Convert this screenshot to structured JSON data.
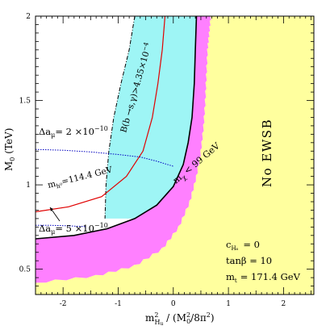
{
  "chart_data": {
    "type": "area",
    "xlabel": "m²_{H_u} / (M₀²/8π²)",
    "ylabel": "M₀ (TeV)",
    "xlim": [
      -2.5,
      2.55
    ],
    "ylim": [
      0.35,
      2.0
    ],
    "x_ticks": [
      -2,
      -1,
      0,
      1,
      2
    ],
    "y_ticks": [
      0.5,
      1,
      1.5,
      2
    ],
    "grid": false,
    "colors": {
      "no_ewsb": "#ffff9e",
      "chargino": "#ff80ff",
      "bsg": "#9ef5f5",
      "higgs_line": "#e00000",
      "g2_line": "#0000c0"
    },
    "regions": [
      {
        "label": "No EWSB",
        "color": "#ffff9e",
        "boundary": [
          [
            0.68,
            2.0
          ],
          [
            0.65,
            1.9
          ],
          [
            0.62,
            1.8
          ],
          [
            0.6,
            1.65
          ],
          [
            0.58,
            1.5
          ],
          [
            0.55,
            1.35
          ],
          [
            0.5,
            1.2
          ],
          [
            0.42,
            1.05
          ],
          [
            0.3,
            0.9
          ],
          [
            0.1,
            0.75
          ],
          [
            -0.2,
            0.62
          ],
          [
            -0.7,
            0.52
          ],
          [
            -1.4,
            0.46
          ],
          [
            -2.5,
            0.42
          ]
        ]
      },
      {
        "label": "m_χ < 99 GeV",
        "color": "#ff80ff",
        "boundary": [
          [
            0.42,
            2.0
          ],
          [
            0.4,
            1.8
          ],
          [
            0.38,
            1.6
          ],
          [
            0.34,
            1.4
          ],
          [
            0.27,
            1.25
          ],
          [
            0.18,
            1.12
          ],
          [
            0.0,
            0.99
          ],
          [
            -0.3,
            0.88
          ],
          [
            -0.7,
            0.8
          ],
          [
            -1.2,
            0.74
          ],
          [
            -1.8,
            0.7
          ],
          [
            -2.5,
            0.68
          ]
        ]
      },
      {
        "label": "B(b→s,γ) > 4.35×10⁻⁴",
        "color": "#9ef5f5",
        "boundary": [
          [
            -0.7,
            2.0
          ],
          [
            -0.8,
            1.8
          ],
          [
            -0.95,
            1.6
          ],
          [
            -1.08,
            1.4
          ],
          [
            -1.17,
            1.2
          ],
          [
            -1.22,
            1.0
          ],
          [
            -1.24,
            0.8
          ]
        ]
      }
    ],
    "series": [
      {
        "name": "m_h⁰ = 114.4 GeV",
        "color": "#e00000",
        "points": [
          [
            -0.15,
            2.0
          ],
          [
            -0.2,
            1.8
          ],
          [
            -0.28,
            1.6
          ],
          [
            -0.38,
            1.4
          ],
          [
            -0.55,
            1.2
          ],
          [
            -0.85,
            1.05
          ],
          [
            -1.3,
            0.93
          ],
          [
            -1.9,
            0.87
          ],
          [
            -2.5,
            0.84
          ]
        ]
      },
      {
        "name": "Δa_μ = 2×10⁻¹⁰",
        "color": "#0000c0",
        "points": [
          [
            -2.5,
            1.21
          ],
          [
            -2.0,
            1.205
          ],
          [
            -1.5,
            1.195
          ],
          [
            -1.0,
            1.18
          ],
          [
            -0.6,
            1.165
          ],
          [
            -0.3,
            1.14
          ],
          [
            0.0,
            1.11
          ]
        ]
      },
      {
        "name": "Δa_μ = 5×10⁻¹⁰",
        "color": "#0000c0",
        "points": [
          [
            -2.5,
            0.76
          ],
          [
            -2.2,
            0.76
          ],
          [
            -1.9,
            0.757
          ],
          [
            -1.6,
            0.752
          ]
        ]
      }
    ],
    "annotations": [
      {
        "text": "No EWSB"
      },
      {
        "text": "m_χ < 99 GeV"
      },
      {
        "text": "B(b→s,γ) > 4.35×10⁻⁴"
      },
      {
        "text": "m_h⁰ = 114.4 GeV"
      },
      {
        "text": "Δa_μ = 2 ×10⁻¹⁰"
      },
      {
        "text": "Δa_μ = 5 ×10⁻¹⁰"
      },
      {
        "text": "c_H₆ = 0"
      },
      {
        "text": "tanβ = 10"
      },
      {
        "text": "m_t = 171.4 GeV"
      }
    ]
  },
  "labels": {
    "no_ewsb": "No EWSB",
    "chargino_prefix": "m",
    "chargino_sub": "χ",
    "chargino_rest": "< 99 GeV",
    "bsg_text": "B(b →s,γ)>4.35×10",
    "bsg_sup": "−4",
    "higgs_prefix": "m",
    "higgs_sub": "h⁰",
    "higgs_rest": "=114.4 GeV",
    "g2a_prefix": "Δa",
    "g2a_sub": "μ",
    "g2a_rest": "= 2 ×10",
    "g2a_sup": "−10",
    "g2b_prefix": "Δa",
    "g2b_sub": "μ",
    "g2b_rest": "= 5 ×10",
    "g2b_sup": "−10",
    "param1_prefix": "c",
    "param1_sub": "H₆",
    "param1_rest": "= 0",
    "param2": "tanβ = 10",
    "param3_prefix": "m",
    "param3_sub": "t",
    "param3_rest": "= 171.4 GeV",
    "xlabel_m": "m",
    "xlabel_sup": "2",
    "xlabel_sub": "H",
    "xlabel_subsub": "u",
    "xlabel_rest": " / (M",
    "xlabel_sub0": "0",
    "xlabel_sup2": "2",
    "xlabel_end": "/8π",
    "xlabel_sup3": "2",
    "xlabel_close": ")",
    "ylabel_M": "M",
    "ylabel_sub": "0",
    "ylabel_rest": " (TeV)"
  }
}
